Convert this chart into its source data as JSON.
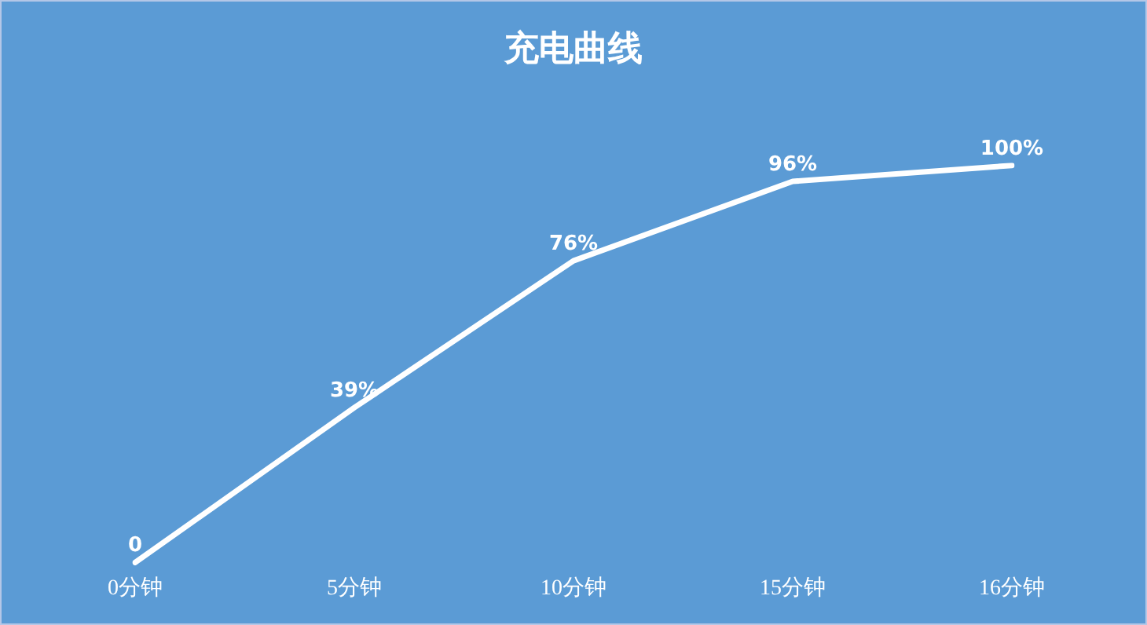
{
  "chart_data": {
    "type": "line",
    "title": "充电曲线",
    "categories": [
      "0分钟",
      "5分钟",
      "10分钟",
      "15分钟",
      "16分钟"
    ],
    "series": [
      {
        "color": "#ffffff",
        "values": [
          0,
          39,
          76,
          96,
          100
        ],
        "value_labels": [
          "0",
          "39%",
          "76%",
          "96%",
          "100%"
        ]
      }
    ],
    "grid": false,
    "legend": false,
    "marker": "none",
    "line_style": "solid",
    "tick_labels": "x"
  }
}
